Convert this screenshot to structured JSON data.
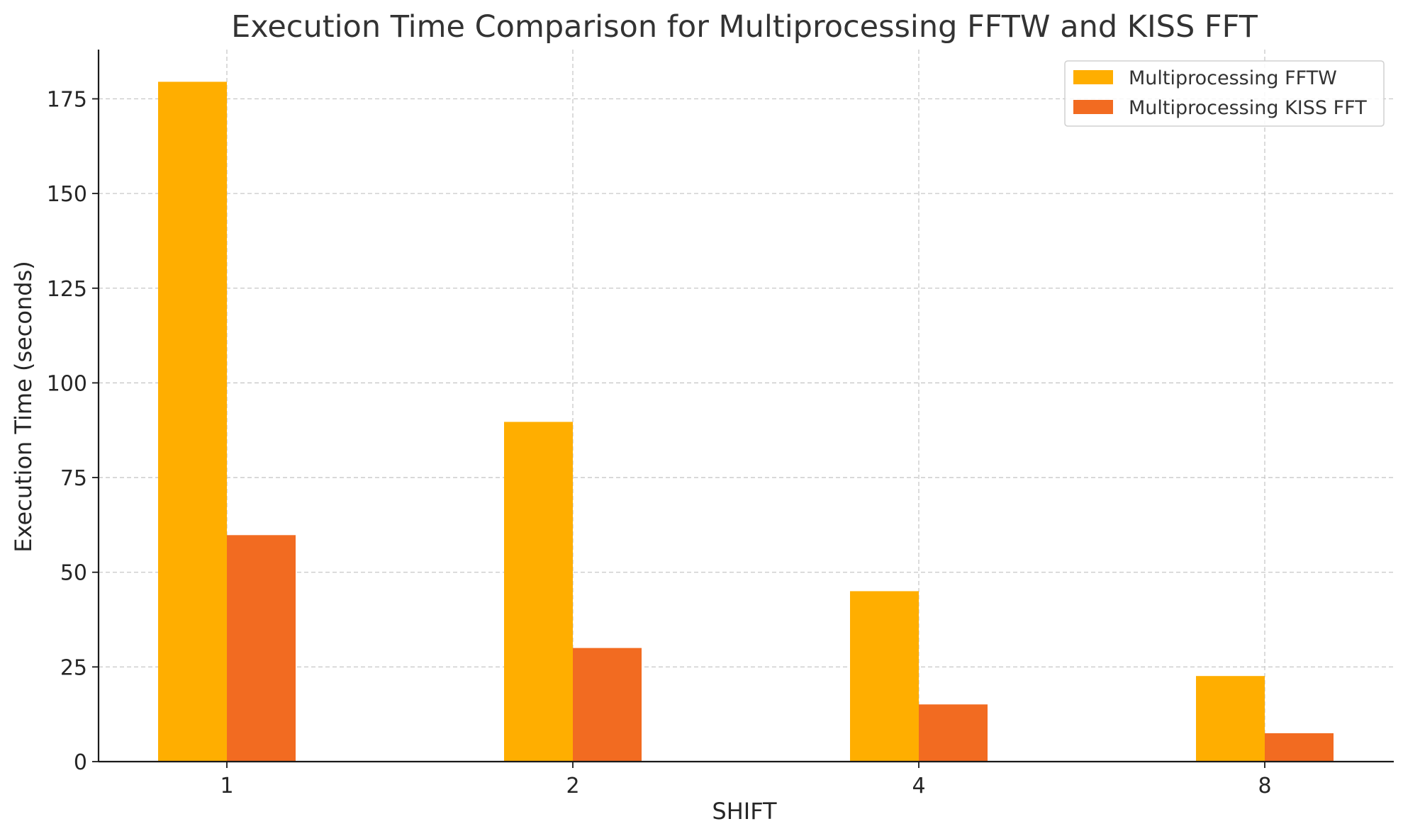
{
  "chart_data": {
    "type": "bar",
    "title": "Execution Time Comparison for Multiprocessing FFTW and KISS FFT",
    "xlabel": "SHIFT",
    "ylabel": "Execution Time (seconds)",
    "categories": [
      "1",
      "2",
      "4",
      "8"
    ],
    "series": [
      {
        "name": "Multiprocessing FFTW",
        "color": "#FFAE00",
        "values": [
          179.5,
          89.7,
          45.0,
          22.6
        ]
      },
      {
        "name": "Multiprocessing KISS FFT",
        "color": "#F26B21",
        "values": [
          59.8,
          30.0,
          15.1,
          7.5
        ]
      }
    ],
    "ylim": [
      0,
      188
    ],
    "yticks": [
      0,
      25,
      50,
      75,
      100,
      125,
      150,
      175
    ],
    "grid": true,
    "legend_position": "top-right"
  }
}
